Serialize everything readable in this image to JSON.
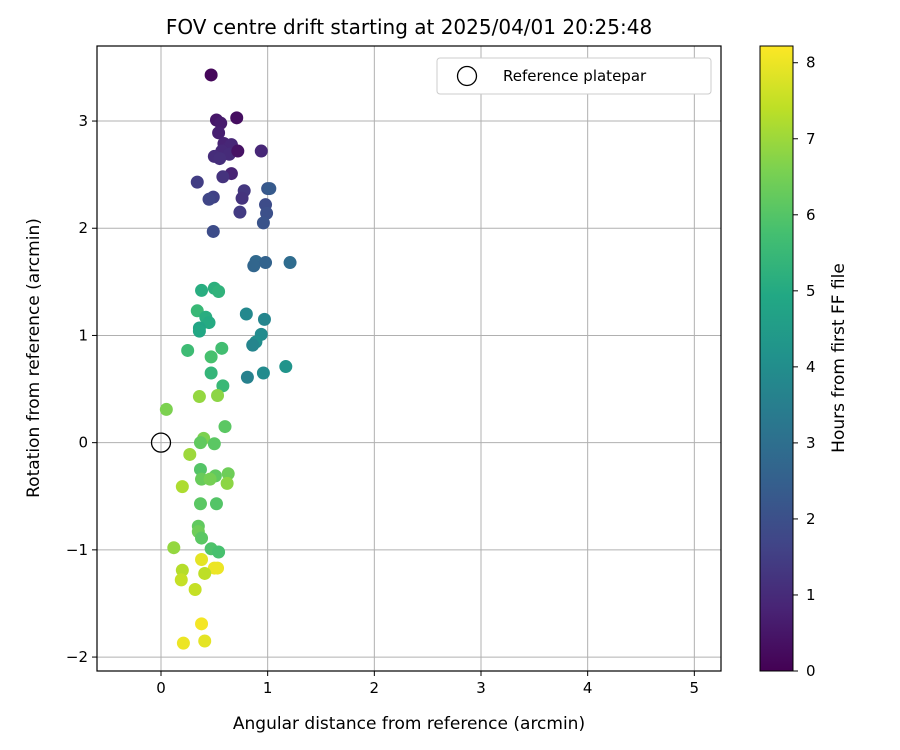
{
  "chart_data": {
    "type": "scatter",
    "title": "FOV centre drift starting at 2025/04/01 20:25:48",
    "xlabel": "Angular distance from reference (arcmin)",
    "ylabel": "Rotation from reference (arcmin)",
    "xlim": [
      -0.6,
      5.25
    ],
    "ylim": [
      -2.13,
      3.7
    ],
    "xticks": [
      0,
      1,
      2,
      3,
      4,
      5
    ],
    "yticks": [
      -2,
      -1,
      0,
      1,
      2,
      3
    ],
    "grid": true,
    "legend": {
      "position": "top-right",
      "entries": [
        "Reference platepar"
      ]
    },
    "reference_point": {
      "x": 0,
      "y": 0,
      "label": "Reference platepar"
    },
    "colorbar": {
      "label": "Hours from first FF file",
      "range": [
        0,
        8.22
      ],
      "ticks": [
        0,
        1,
        2,
        3,
        4,
        5,
        6,
        7,
        8
      ],
      "colormap": "viridis"
    },
    "points": [
      {
        "x": 0.47,
        "y": 3.43,
        "h": 0.15
      },
      {
        "x": 0.71,
        "y": 3.03,
        "h": 0.3
      },
      {
        "x": 0.52,
        "y": 3.01,
        "h": 0.5
      },
      {
        "x": 0.56,
        "y": 2.98,
        "h": 0.6
      },
      {
        "x": 0.54,
        "y": 2.89,
        "h": 0.7
      },
      {
        "x": 0.59,
        "y": 2.79,
        "h": 0.8
      },
      {
        "x": 0.62,
        "y": 2.74,
        "h": 0.85
      },
      {
        "x": 0.66,
        "y": 2.78,
        "h": 0.9
      },
      {
        "x": 0.57,
        "y": 2.72,
        "h": 0.95
      },
      {
        "x": 0.64,
        "y": 2.69,
        "h": 1.0
      },
      {
        "x": 0.5,
        "y": 2.67,
        "h": 1.05
      },
      {
        "x": 0.55,
        "y": 2.65,
        "h": 1.1
      },
      {
        "x": 0.72,
        "y": 2.72,
        "h": 0.4
      },
      {
        "x": 0.94,
        "y": 2.72,
        "h": 0.9
      },
      {
        "x": 0.66,
        "y": 2.51,
        "h": 0.8
      },
      {
        "x": 0.58,
        "y": 2.48,
        "h": 1.2
      },
      {
        "x": 0.34,
        "y": 2.43,
        "h": 1.5
      },
      {
        "x": 0.78,
        "y": 2.35,
        "h": 1.3
      },
      {
        "x": 0.76,
        "y": 2.28,
        "h": 1.2
      },
      {
        "x": 0.49,
        "y": 2.29,
        "h": 1.6
      },
      {
        "x": 0.45,
        "y": 2.27,
        "h": 1.7
      },
      {
        "x": 0.74,
        "y": 2.15,
        "h": 1.4
      },
      {
        "x": 0.98,
        "y": 2.22,
        "h": 1.9
      },
      {
        "x": 1.0,
        "y": 2.37,
        "h": 2.2
      },
      {
        "x": 1.02,
        "y": 2.37,
        "h": 2.3
      },
      {
        "x": 0.99,
        "y": 2.14,
        "h": 2.0
      },
      {
        "x": 0.96,
        "y": 2.05,
        "h": 2.1
      },
      {
        "x": 0.49,
        "y": 1.97,
        "h": 1.9
      },
      {
        "x": 0.89,
        "y": 1.69,
        "h": 2.8
      },
      {
        "x": 0.87,
        "y": 1.65,
        "h": 2.7
      },
      {
        "x": 0.98,
        "y": 1.68,
        "h": 2.6
      },
      {
        "x": 1.21,
        "y": 1.68,
        "h": 2.9
      },
      {
        "x": 0.38,
        "y": 1.42,
        "h": 5.1
      },
      {
        "x": 0.5,
        "y": 1.44,
        "h": 5.2
      },
      {
        "x": 0.54,
        "y": 1.41,
        "h": 5.3
      },
      {
        "x": 0.34,
        "y": 1.23,
        "h": 5.5
      },
      {
        "x": 0.42,
        "y": 1.17,
        "h": 5.1
      },
      {
        "x": 0.45,
        "y": 1.12,
        "h": 5.0
      },
      {
        "x": 0.8,
        "y": 1.2,
        "h": 3.8
      },
      {
        "x": 0.97,
        "y": 1.15,
        "h": 3.7
      },
      {
        "x": 0.36,
        "y": 1.07,
        "h": 4.8
      },
      {
        "x": 0.36,
        "y": 1.04,
        "h": 4.9
      },
      {
        "x": 0.94,
        "y": 1.01,
        "h": 3.9
      },
      {
        "x": 0.89,
        "y": 0.94,
        "h": 4.0
      },
      {
        "x": 0.86,
        "y": 0.91,
        "h": 3.7
      },
      {
        "x": 0.25,
        "y": 0.86,
        "h": 5.6
      },
      {
        "x": 0.57,
        "y": 0.88,
        "h": 5.7
      },
      {
        "x": 0.47,
        "y": 0.8,
        "h": 5.8
      },
      {
        "x": 1.17,
        "y": 0.71,
        "h": 4.2
      },
      {
        "x": 0.96,
        "y": 0.65,
        "h": 3.9
      },
      {
        "x": 0.81,
        "y": 0.61,
        "h": 3.6
      },
      {
        "x": 0.47,
        "y": 0.65,
        "h": 5.4
      },
      {
        "x": 0.58,
        "y": 0.53,
        "h": 5.5
      },
      {
        "x": 0.36,
        "y": 0.43,
        "h": 6.9
      },
      {
        "x": 0.53,
        "y": 0.44,
        "h": 6.8
      },
      {
        "x": 0.05,
        "y": 0.31,
        "h": 6.6
      },
      {
        "x": 0.6,
        "y": 0.15,
        "h": 6.1
      },
      {
        "x": 0.4,
        "y": 0.04,
        "h": 6.6
      },
      {
        "x": 0.37,
        "y": 0.0,
        "h": 6.2
      },
      {
        "x": 0.5,
        "y": -0.01,
        "h": 6.1
      },
      {
        "x": 0.27,
        "y": -0.11,
        "h": 7.0
      },
      {
        "x": 0.37,
        "y": -0.25,
        "h": 6.0
      },
      {
        "x": 0.63,
        "y": -0.29,
        "h": 6.4
      },
      {
        "x": 0.51,
        "y": -0.31,
        "h": 6.2
      },
      {
        "x": 0.38,
        "y": -0.34,
        "h": 6.3
      },
      {
        "x": 0.46,
        "y": -0.34,
        "h": 6.5
      },
      {
        "x": 0.62,
        "y": -0.38,
        "h": 6.8
      },
      {
        "x": 0.2,
        "y": -0.41,
        "h": 7.2
      },
      {
        "x": 0.37,
        "y": -0.57,
        "h": 6.1
      },
      {
        "x": 0.52,
        "y": -0.57,
        "h": 6.0
      },
      {
        "x": 0.35,
        "y": -0.78,
        "h": 6.2
      },
      {
        "x": 0.35,
        "y": -0.83,
        "h": 6.4
      },
      {
        "x": 0.38,
        "y": -0.89,
        "h": 6.1
      },
      {
        "x": 0.12,
        "y": -0.98,
        "h": 6.9
      },
      {
        "x": 0.47,
        "y": -0.99,
        "h": 5.9
      },
      {
        "x": 0.54,
        "y": -1.02,
        "h": 5.8
      },
      {
        "x": 0.38,
        "y": -1.09,
        "h": 7.9
      },
      {
        "x": 0.2,
        "y": -1.19,
        "h": 7.3
      },
      {
        "x": 0.5,
        "y": -1.17,
        "h": 8.0
      },
      {
        "x": 0.53,
        "y": -1.17,
        "h": 8.0
      },
      {
        "x": 0.41,
        "y": -1.22,
        "h": 7.4
      },
      {
        "x": 0.19,
        "y": -1.28,
        "h": 7.5
      },
      {
        "x": 0.32,
        "y": -1.37,
        "h": 7.5
      },
      {
        "x": 0.38,
        "y": -1.69,
        "h": 8.1
      },
      {
        "x": 0.21,
        "y": -1.87,
        "h": 8.0
      },
      {
        "x": 0.41,
        "y": -1.85,
        "h": 7.9
      }
    ]
  }
}
